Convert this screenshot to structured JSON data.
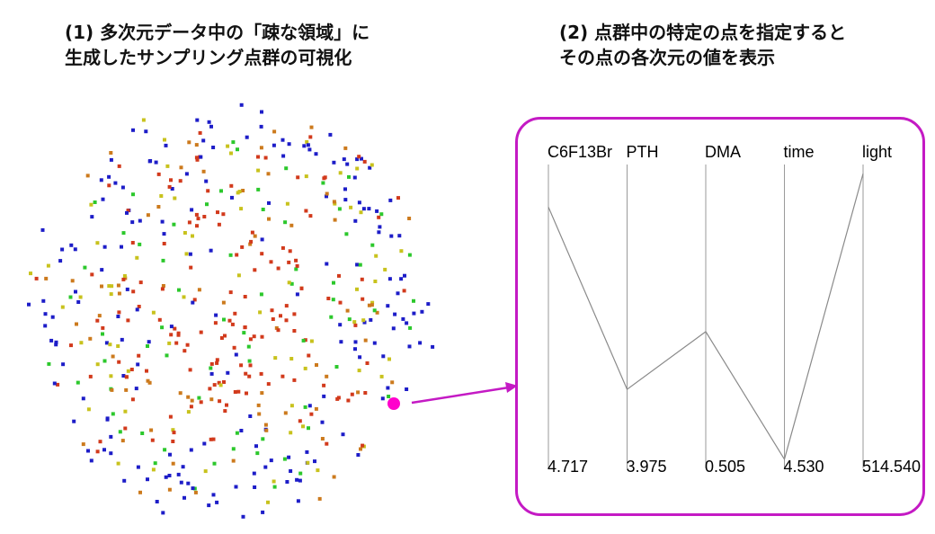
{
  "headings": {
    "left": {
      "line1": "(1) 多次元データ中の「疎な領域」に",
      "line2": "生成したサンプリング点群の可視化"
    },
    "right": {
      "line1": "(2) 点群中の特定の点を指定すると",
      "line2": "その点の各次元の値を表示"
    }
  },
  "colors": {
    "highlight": "#ff00cc",
    "arrow": "#c41ac4",
    "frame": "#c41ac4",
    "points": [
      "#1d1dc8",
      "#d23a1c",
      "#c8c21d",
      "#2cc82c",
      "#cc7a1d"
    ]
  },
  "parallel_coordinates": {
    "axes": [
      {
        "name": "C6F13Br",
        "value": "4.717",
        "level": 0.86
      },
      {
        "name": "PTH",
        "value": "3.975",
        "level": 0.26
      },
      {
        "name": "DMA",
        "value": "0.505",
        "level": 0.45
      },
      {
        "name": "time",
        "value": "4.530",
        "level": 0.03
      },
      {
        "name": "light",
        "value": "514.540",
        "level": 0.97
      }
    ]
  }
}
